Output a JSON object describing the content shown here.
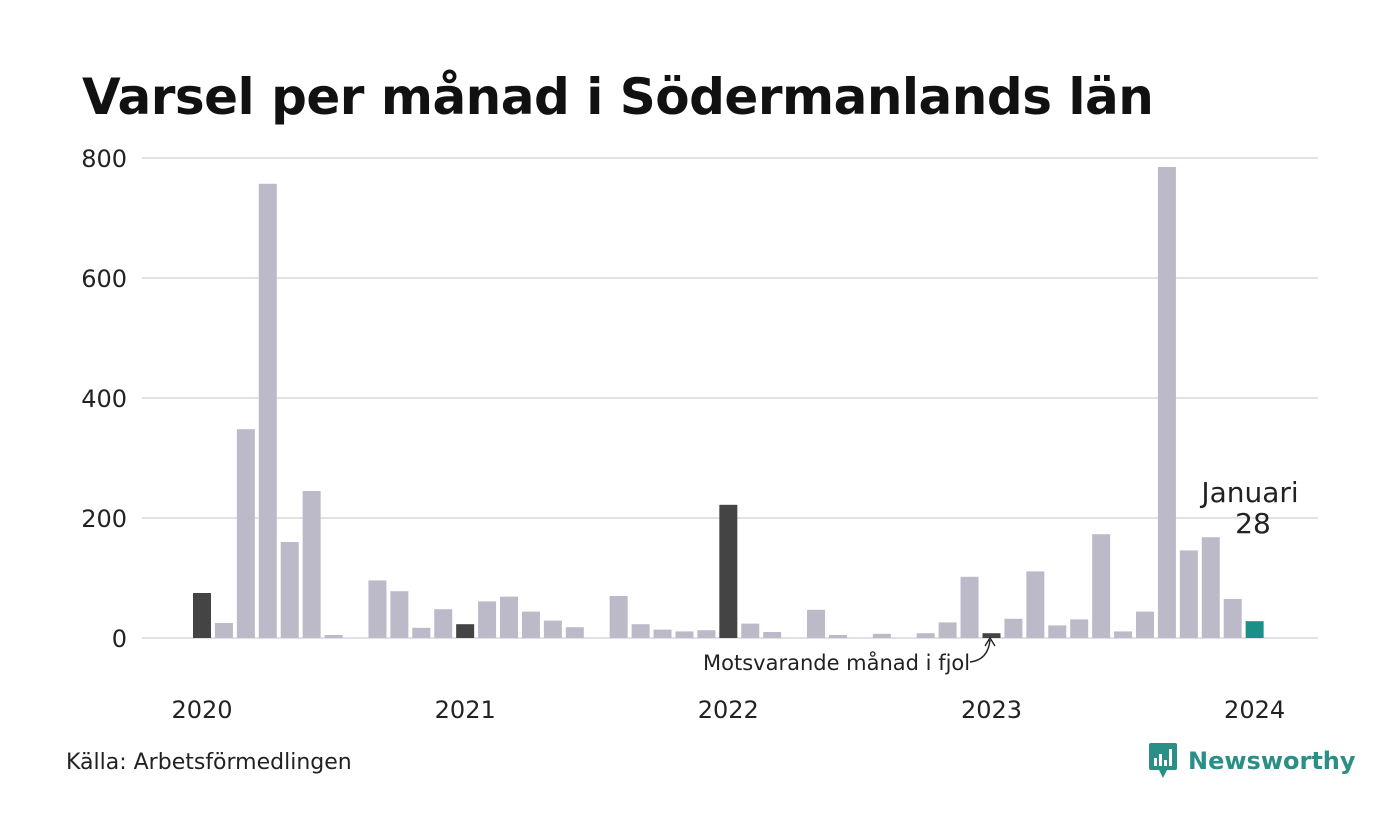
{
  "chart_data": {
    "type": "bar",
    "title": "Varsel per månad i Södermanlands län",
    "ylim": [
      0,
      800
    ],
    "yticks": [
      0,
      200,
      400,
      600,
      800
    ],
    "year_labels": [
      "2020",
      "2021",
      "2022",
      "2023",
      "2024"
    ],
    "months": [
      "2020-01",
      "2020-02",
      "2020-03",
      "2020-04",
      "2020-05",
      "2020-06",
      "2020-07",
      "2020-08",
      "2020-09",
      "2020-10",
      "2020-11",
      "2020-12",
      "2021-01",
      "2021-02",
      "2021-03",
      "2021-04",
      "2021-05",
      "2021-06",
      "2021-07",
      "2021-08",
      "2021-09",
      "2021-10",
      "2021-11",
      "2021-12",
      "2022-01",
      "2022-02",
      "2022-03",
      "2022-04",
      "2022-05",
      "2022-06",
      "2022-07",
      "2022-08",
      "2022-09",
      "2022-10",
      "2022-11",
      "2022-12",
      "2023-01",
      "2023-02",
      "2023-03",
      "2023-04",
      "2023-05",
      "2023-06",
      "2023-07",
      "2023-08",
      "2023-09",
      "2023-10",
      "2023-11",
      "2023-12",
      "2024-01"
    ],
    "values": [
      75,
      25,
      348,
      757,
      160,
      245,
      5,
      0,
      96,
      78,
      17,
      48,
      23,
      61,
      69,
      44,
      29,
      18,
      0,
      70,
      23,
      14,
      11,
      13,
      222,
      24,
      10,
      0,
      47,
      5,
      0,
      7,
      0,
      8,
      26,
      102,
      8,
      32,
      111,
      21,
      31,
      173,
      11,
      44,
      785,
      146,
      168,
      65,
      28
    ],
    "colors": {
      "default": "#bcbac8",
      "january": "#444444",
      "current": "#1a9088",
      "grid": "#e2e2e6"
    },
    "highlight": {
      "label": "Januari",
      "value": "28"
    },
    "annotation": "Motsvarande månad i fjol"
  },
  "source": "Källa: Arbetsförmedlingen",
  "brand": {
    "name": "Newsworthy",
    "icon": "newsworthy-logo-icon"
  }
}
